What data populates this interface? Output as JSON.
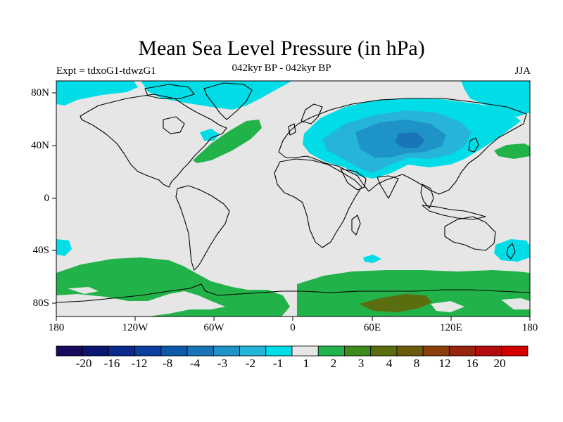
{
  "title": "Mean Sea Level Pressure (in hPa)",
  "experiment": "Expt = tdxoG1-tdwzG1",
  "period": "042kyr BP - 042kyr BP",
  "season": "JJA",
  "lat_labels": [
    "80N",
    "40N",
    "0",
    "40S",
    "80S"
  ],
  "lon_labels": [
    "180",
    "120W",
    "60W",
    "0",
    "60E",
    "120E",
    "180"
  ],
  "colorbar": {
    "colors": [
      "#1a0a5e",
      "#0c1670",
      "#0a2a8c",
      "#0a3f9e",
      "#0e5aa8",
      "#1a74b8",
      "#1e93c8",
      "#26b4d8",
      "#00dde6",
      "#e6e6e6",
      "#22b24a",
      "#3e8a1c",
      "#5a6e10",
      "#6e5a0c",
      "#8a3e0c",
      "#962410",
      "#b40c0c",
      "#d40000"
    ],
    "labels": [
      "-20",
      "-16",
      "-12",
      "-8",
      "-4",
      "-3",
      "-2",
      "-1",
      "1",
      "2",
      "3",
      "4",
      "8",
      "12",
      "16",
      "20"
    ]
  },
  "palette": {
    "background": "#e6e6e6",
    "neg1": "#00dde6",
    "neg2": "#26b4d8",
    "neg3": "#1e93c8",
    "neg4": "#1a74b8",
    "pos1": "#22b24a",
    "pos2": "#3e8a1c",
    "pos3": "#5a6e10"
  }
}
